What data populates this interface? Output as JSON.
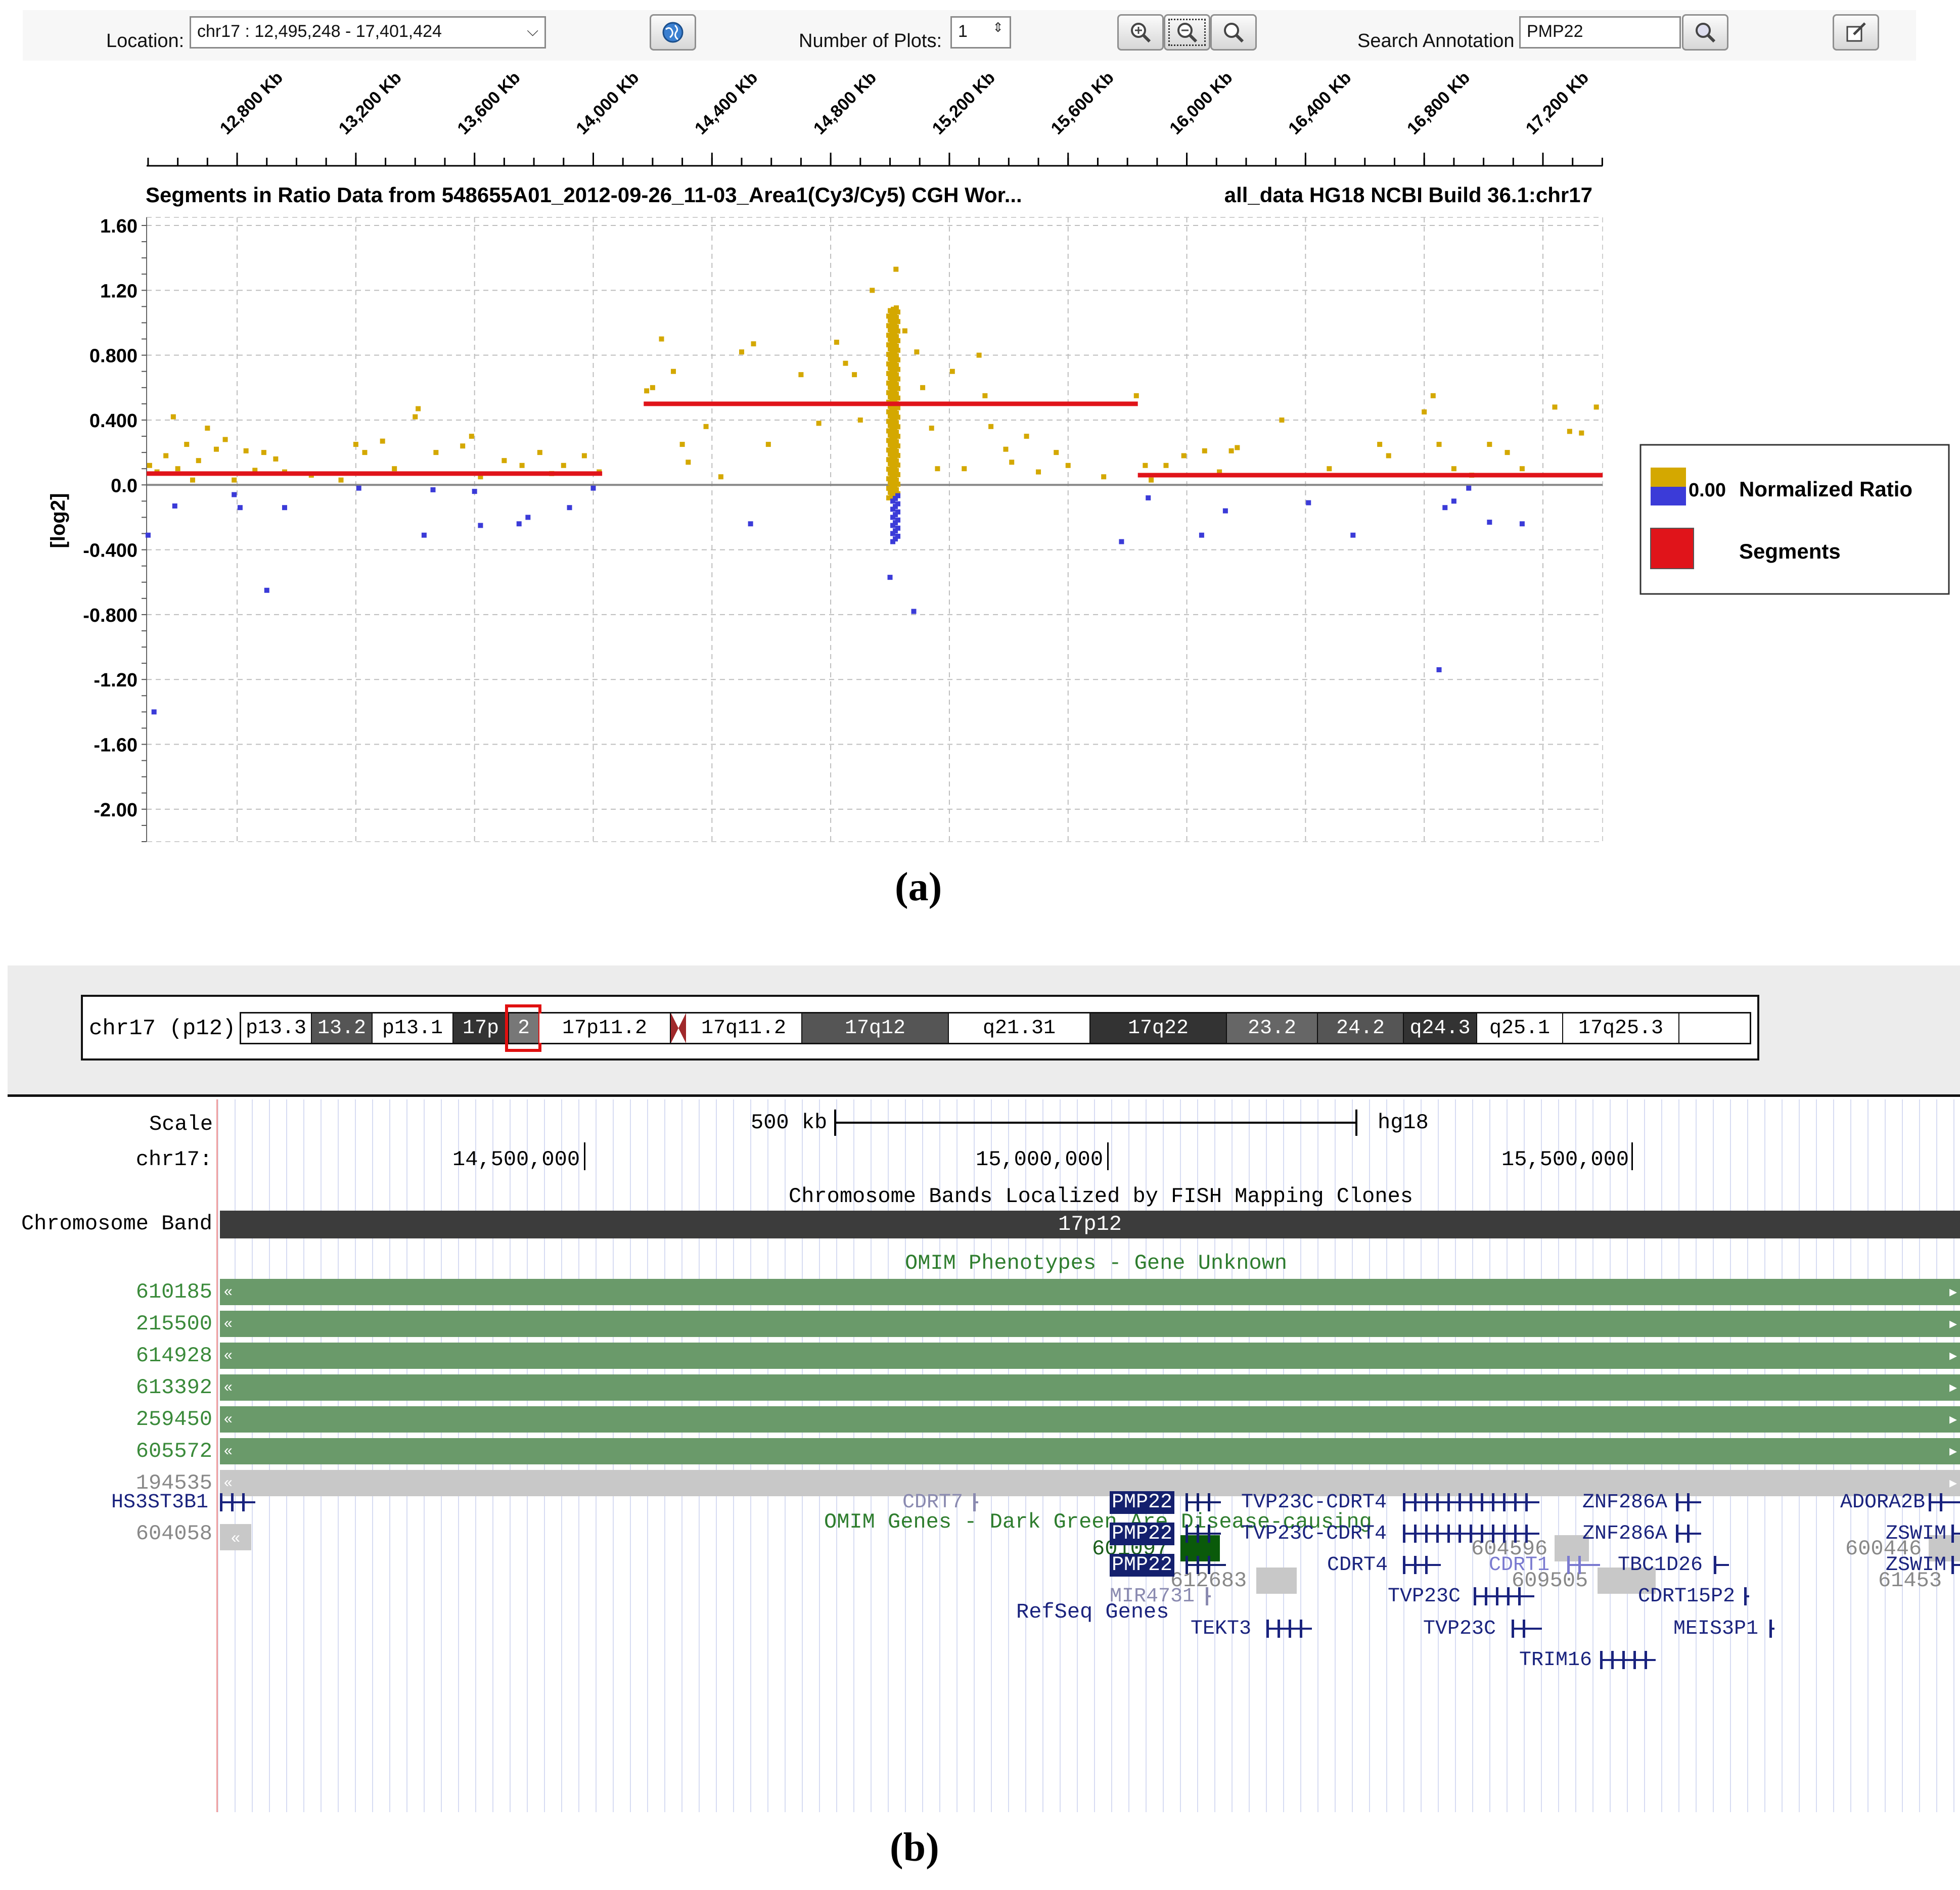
{
  "toolbar": {
    "location_label": "Location:",
    "location_value": "chr17 :  12,495,248  -  17,401,424",
    "num_plots_label": "Number of Plots:",
    "num_plots_value": "1",
    "search_label": "Search Annotation",
    "search_value": "PMP22",
    "icons": [
      "globe-icon",
      "zoom-in-icon",
      "zoom-out-icon",
      "zoom-fit-icon",
      "search-icon",
      "edit-icon"
    ]
  },
  "chart_data": {
    "type": "scatter",
    "title_left": "Segments in Ratio Data from 548655A01_2012-09-26_11-03_Area1(Cy3/Cy5) CGH Wor...",
    "title_right": "all_data HG18 NCBI Build 36.1:chr17",
    "ylabel": "[log2]",
    "ylim": [
      -2.2,
      1.65
    ],
    "xlim": [
      12495,
      17401
    ],
    "x_tick_labels": [
      "12,800 Kb",
      "13,200 Kb",
      "13,600 Kb",
      "14,000 Kb",
      "14,400 Kb",
      "14,800 Kb",
      "15,200 Kb",
      "15,600 Kb",
      "16,000 Kb",
      "16,400 Kb",
      "16,800 Kb",
      "17,200 Kb"
    ],
    "x_ticks": [
      12800,
      13200,
      13600,
      14000,
      14400,
      14800,
      15200,
      15600,
      16000,
      16400,
      16800,
      17200
    ],
    "y_ticks": [
      1.6,
      1.2,
      0.8,
      0.4,
      0.0,
      -0.4,
      -0.8,
      -1.2,
      -1.6,
      -2.0
    ],
    "y_tick_labels": [
      "1.60",
      "1.20",
      "0.800",
      "0.400",
      "0.0",
      "-0.400",
      "-0.800",
      "-1.20",
      "-1.60",
      "-2.00"
    ],
    "grid": true,
    "legend_position": "right",
    "legend": [
      {
        "name": "Normalized Ratio",
        "value_label": "0.00",
        "colors": [
          "#d4a800",
          "#3b3bd8"
        ]
      },
      {
        "name": "Segments",
        "colors": [
          "#e0141a"
        ]
      }
    ],
    "segments": [
      {
        "x0": 12495,
        "x1": 14030,
        "y": 0.07
      },
      {
        "x0": 14170,
        "x1": 15835,
        "y": 0.5
      },
      {
        "x0": 15835,
        "x1": 17401,
        "y": 0.06
      }
    ],
    "series": [
      {
        "name": "positive",
        "color": "#d4a800",
        "points": [
          [
            12505,
            0.12
          ],
          [
            12530,
            0.08
          ],
          [
            12560,
            0.18
          ],
          [
            12585,
            0.42
          ],
          [
            12600,
            0.1
          ],
          [
            12630,
            0.25
          ],
          [
            12650,
            0.03
          ],
          [
            12670,
            0.15
          ],
          [
            12700,
            0.35
          ],
          [
            12730,
            0.22
          ],
          [
            12760,
            0.28
          ],
          [
            12790,
            0.03
          ],
          [
            12830,
            0.21
          ],
          [
            12860,
            0.09
          ],
          [
            12890,
            0.2
          ],
          [
            12930,
            0.16
          ],
          [
            12960,
            0.08
          ],
          [
            13050,
            0.06
          ],
          [
            13150,
            0.03
          ],
          [
            13200,
            0.25
          ],
          [
            13230,
            0.2
          ],
          [
            13290,
            0.27
          ],
          [
            13330,
            0.1
          ],
          [
            13400,
            0.42
          ],
          [
            13410,
            0.47
          ],
          [
            13470,
            0.2
          ],
          [
            13560,
            0.24
          ],
          [
            13590,
            0.3
          ],
          [
            13620,
            0.05
          ],
          [
            13700,
            0.15
          ],
          [
            13760,
            0.12
          ],
          [
            13820,
            0.2
          ],
          [
            13860,
            0.07
          ],
          [
            13900,
            0.12
          ],
          [
            13970,
            0.18
          ],
          [
            14020,
            0.08
          ],
          [
            14180,
            0.58
          ],
          [
            14200,
            0.6
          ],
          [
            14230,
            0.9
          ],
          [
            14270,
            0.7
          ],
          [
            14300,
            0.25
          ],
          [
            14320,
            0.14
          ],
          [
            14380,
            0.36
          ],
          [
            14430,
            0.05
          ],
          [
            14500,
            0.82
          ],
          [
            14540,
            0.87
          ],
          [
            14590,
            0.25
          ],
          [
            14700,
            0.68
          ],
          [
            14760,
            0.38
          ],
          [
            14820,
            0.88
          ],
          [
            14850,
            0.75
          ],
          [
            14880,
            0.68
          ],
          [
            14900,
            0.4
          ],
          [
            14940,
            1.2
          ],
          [
            15020,
            1.33
          ],
          [
            15050,
            0.95
          ],
          [
            15090,
            0.82
          ],
          [
            15110,
            0.6
          ],
          [
            15140,
            0.35
          ],
          [
            15160,
            0.1
          ],
          [
            15210,
            0.7
          ],
          [
            15250,
            0.1
          ],
          [
            15300,
            0.8
          ],
          [
            15320,
            0.55
          ],
          [
            15340,
            0.36
          ],
          [
            15390,
            0.22
          ],
          [
            15410,
            0.14
          ],
          [
            15460,
            0.3
          ],
          [
            15500,
            0.08
          ],
          [
            15560,
            0.2
          ],
          [
            15600,
            0.12
          ],
          [
            15720,
            0.05
          ],
          [
            15830,
            0.55
          ],
          [
            15860,
            0.12
          ],
          [
            15880,
            0.03
          ],
          [
            15930,
            0.12
          ],
          [
            15990,
            0.18
          ],
          [
            16060,
            0.21
          ],
          [
            16110,
            0.08
          ],
          [
            16150,
            0.21
          ],
          [
            16170,
            0.23
          ],
          [
            16320,
            0.4
          ],
          [
            16480,
            0.1
          ],
          [
            16650,
            0.25
          ],
          [
            16680,
            0.18
          ],
          [
            16800,
            0.45
          ],
          [
            16830,
            0.55
          ],
          [
            16850,
            0.25
          ],
          [
            16900,
            0.1
          ],
          [
            16960,
            0.06
          ],
          [
            17020,
            0.25
          ],
          [
            17080,
            0.2
          ],
          [
            17130,
            0.1
          ],
          [
            17240,
            0.48
          ],
          [
            17290,
            0.33
          ],
          [
            17330,
            0.32
          ],
          [
            17380,
            0.48
          ]
        ]
      },
      {
        "name": "negative",
        "color": "#3b3bd8",
        "points": [
          [
            12500,
            -0.31
          ],
          [
            12520,
            -1.4
          ],
          [
            12590,
            -0.13
          ],
          [
            12790,
            -0.06
          ],
          [
            12810,
            -0.14
          ],
          [
            12900,
            -0.65
          ],
          [
            12960,
            -0.14
          ],
          [
            13210,
            -0.02
          ],
          [
            13430,
            -0.31
          ],
          [
            13460,
            -0.03
          ],
          [
            13600,
            -0.04
          ],
          [
            13620,
            -0.25
          ],
          [
            13750,
            -0.24
          ],
          [
            13780,
            -0.2
          ],
          [
            13920,
            -0.14
          ],
          [
            14000,
            -0.02
          ],
          [
            14530,
            -0.24
          ],
          [
            15000,
            -0.57
          ],
          [
            15080,
            -0.78
          ],
          [
            15780,
            -0.35
          ],
          [
            15870,
            -0.08
          ],
          [
            16050,
            -0.31
          ],
          [
            16130,
            -0.16
          ],
          [
            16410,
            -0.11
          ],
          [
            16560,
            -0.31
          ],
          [
            16850,
            -1.14
          ],
          [
            16870,
            -0.14
          ],
          [
            16900,
            -0.1
          ],
          [
            16950,
            -0.02
          ],
          [
            17020,
            -0.23
          ],
          [
            17130,
            -0.24
          ]
        ]
      },
      {
        "name": "dense-cluster",
        "color": "#d4a800",
        "x": 15023,
        "y_range": [
          -0.08,
          1.1
        ]
      },
      {
        "name": "dense-cluster-neg",
        "color": "#3b3bd8",
        "x": 15023,
        "y_range": [
          -0.35,
          -0.05
        ]
      }
    ]
  },
  "caption_a": "(a)",
  "caption_b": "(b)",
  "ideogram": {
    "label": "chr17 (p12)",
    "bands": [
      {
        "name": "p13.3",
        "fill": "#ffffff",
        "text": "#000"
      },
      {
        "name": "13.2",
        "fill": "#555555",
        "text": "#fff"
      },
      {
        "name": "p13.1",
        "fill": "#ffffff",
        "text": "#000"
      },
      {
        "name": "17p",
        "fill": "#333333",
        "text": "#fff"
      },
      {
        "name": "2",
        "fill": "#777777",
        "text": "#fff"
      },
      {
        "name": "17p11.2",
        "fill": "#ffffff",
        "text": "#000"
      },
      {
        "name": "17q11.2",
        "fill": "#ffffff",
        "text": "#000"
      },
      {
        "name": "17q12",
        "fill": "#555555",
        "text": "#fff"
      },
      {
        "name": "q21.31",
        "fill": "#ffffff",
        "text": "#000"
      },
      {
        "name": "17q22",
        "fill": "#333333",
        "text": "#fff"
      },
      {
        "name": "23.2",
        "fill": "#666666",
        "text": "#fff"
      },
      {
        "name": "24.2",
        "fill": "#555555",
        "text": "#fff"
      },
      {
        "name": "q24.3",
        "fill": "#333333",
        "text": "#fff"
      },
      {
        "name": "q25.1",
        "fill": "#ffffff",
        "text": "#000"
      },
      {
        "name": "17q25.3",
        "fill": "#ffffff",
        "text": "#000"
      }
    ]
  },
  "browser": {
    "scale_label": "Scale",
    "chr_label": "chr17:",
    "scale_bar": "500 kb",
    "assembly": "hg18",
    "positions": [
      "14,500,000",
      "15,000,000",
      "15,500,000"
    ],
    "fish_title": "Chromosome Bands Localized by FISH Mapping Clones",
    "band_label": "Chromosome Band",
    "band_value": "17p12",
    "omim_pheno_title": "OMIM Phenotypes - Gene Unknown",
    "omim_pheno_ids": [
      "610185",
      "215500",
      "614928",
      "613392",
      "259450",
      "605572",
      "194535"
    ],
    "omim_genes_title": "OMIM Genes - Dark Green Are Disease-causing",
    "omim_genes": [
      "604058",
      "601097",
      "612683",
      "604596",
      "609505",
      "600446",
      "61453"
    ],
    "refseq_title": "RefSeq Genes",
    "genes": [
      "HS3ST3B1",
      "CDRT7",
      "PMP22",
      "PMP22",
      "PMP22",
      "MIR4731",
      "TEKT3",
      "TVP23C-CDRT4",
      "TVP23C-CDRT4",
      "CDRT4",
      "CDRT1",
      "TVP23C",
      "TVP23C",
      "TRIM16",
      "ZNF286A",
      "ZNF286A",
      "TBC1D26",
      "CDRT15P2",
      "MEIS3P1",
      "ADORA2B",
      "ZSWIM",
      "ZSWIM"
    ]
  }
}
